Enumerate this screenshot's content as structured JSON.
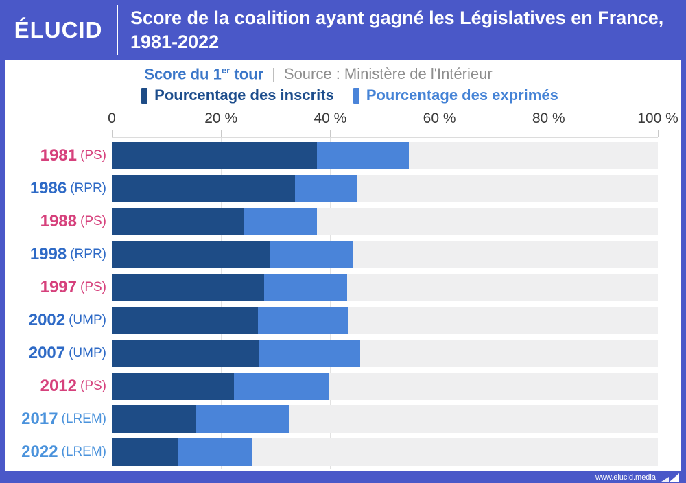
{
  "header": {
    "logo": "ÉLUCID",
    "title": "Score de la coalition ayant gagné les Législatives en France, 1981-2022"
  },
  "subtitle": {
    "score_part1": "Score du 1",
    "score_sup": "er",
    "score_part2": " tour",
    "separator": "|",
    "source": "Source : Ministère de l'Intérieur"
  },
  "legend": {
    "inscrits_label": "Pourcentage des inscrits",
    "exprimes_label": "Pourcentage des exprimés"
  },
  "footer": {
    "url": "www.elucid.media"
  },
  "colors": {
    "frame_blue": "#4a58c8",
    "inscrits": "#1e4c86",
    "exprimes": "#4a84d9",
    "track": "#efeff0",
    "grid": "#e2e2e2",
    "ps_pink": "#d6417c",
    "rpr_ump_blue": "#2e6ac6",
    "lrem_blue": "#4b93dc"
  },
  "chart_data": {
    "type": "bar",
    "orientation": "horizontal",
    "title": "Score de la coalition ayant gagné les Législatives en France, 1981-2022",
    "subtitle": "Score du 1er tour",
    "source": "Source : Ministère de l'Intérieur",
    "unit": "%",
    "xlim": [
      0,
      100
    ],
    "grid": true,
    "legend_position": "top",
    "x_ticks": [
      {
        "v": 0,
        "label": "0"
      },
      {
        "v": 20,
        "label": "20 %"
      },
      {
        "v": 40,
        "label": "40 %"
      },
      {
        "v": 60,
        "label": "60 %"
      },
      {
        "v": 80,
        "label": "80 %"
      },
      {
        "v": 100,
        "label": "100 %"
      }
    ],
    "gridlines": [
      20,
      40,
      60,
      80
    ],
    "series_names": [
      "Pourcentage des inscrits",
      "Pourcentage des exprimés"
    ],
    "rows": [
      {
        "year": "1981",
        "party": "PS",
        "inscrits": 37.6,
        "exprimes": 54.4,
        "label_color": "#d6417c"
      },
      {
        "year": "1986",
        "party": "RPR",
        "inscrits": 33.5,
        "exprimes": 44.9,
        "label_color": "#2e6ac6"
      },
      {
        "year": "1988",
        "party": "PS",
        "inscrits": 24.3,
        "exprimes": 37.5,
        "label_color": "#d6417c"
      },
      {
        "year": "1998",
        "party": "RPR",
        "inscrits": 28.9,
        "exprimes": 44.1,
        "label_color": "#2e6ac6"
      },
      {
        "year": "1997",
        "party": "PS",
        "inscrits": 27.9,
        "exprimes": 43.1,
        "label_color": "#d6417c"
      },
      {
        "year": "2002",
        "party": "UMP",
        "inscrits": 26.8,
        "exprimes": 43.4,
        "label_color": "#2e6ac6"
      },
      {
        "year": "2007",
        "party": "UMP",
        "inscrits": 27.0,
        "exprimes": 45.5,
        "label_color": "#2e6ac6"
      },
      {
        "year": "2012",
        "party": "PS",
        "inscrits": 22.4,
        "exprimes": 39.8,
        "label_color": "#d6417c"
      },
      {
        "year": "2017",
        "party": "LREM",
        "inscrits": 15.5,
        "exprimes": 32.4,
        "label_color": "#4b93dc"
      },
      {
        "year": "2022",
        "party": "LREM",
        "inscrits": 12.0,
        "exprimes": 25.8,
        "label_color": "#4b93dc"
      }
    ]
  }
}
